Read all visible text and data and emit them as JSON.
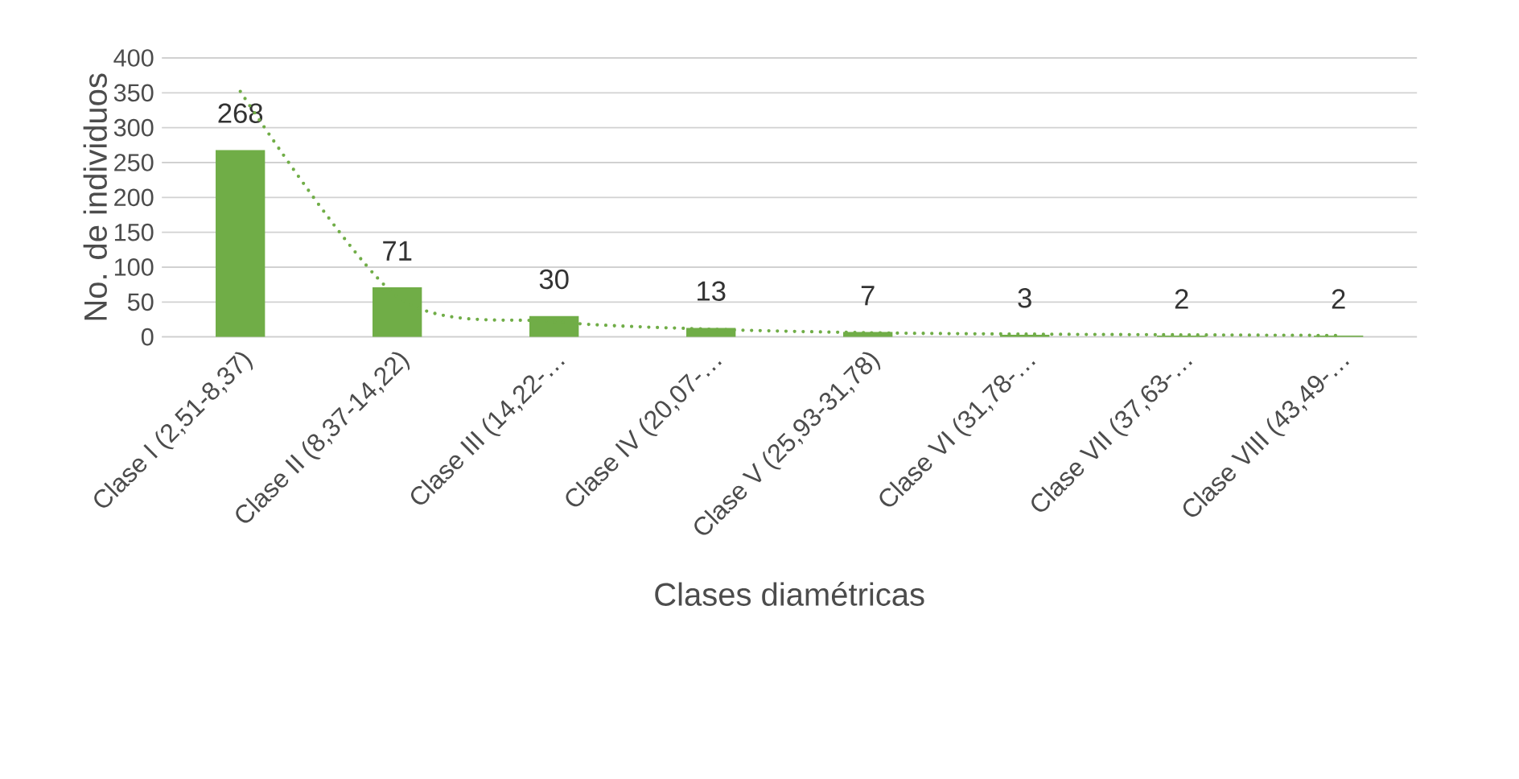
{
  "chart_data": {
    "type": "bar",
    "xlabel": "Clases diamétricas",
    "ylabel": "No. de individuos",
    "categories": [
      "Clase I (2,51-8,37)",
      "Clase II (8,37-14,22)",
      "Clase III (14,22-…",
      "Clase IV (20,07-…",
      "Clase V (25,93-31,78)",
      "Clase VI (31,78-…",
      "Clase VII (37,63-…",
      "Clase VIII (43,49-…"
    ],
    "series": [
      {
        "color": "#70ad47",
        "values": [
          268,
          71,
          30,
          13,
          7,
          3,
          2,
          2
        ],
        "value_labels": [
          "268",
          "71",
          "30",
          "13",
          "7",
          "3",
          "2",
          "2"
        ]
      },
      {
        "type": "line",
        "color": "#70ad47",
        "line_style": "dotted",
        "values": [
          352,
          58,
          22,
          11,
          6,
          4,
          3,
          2
        ]
      }
    ],
    "ylim": [
      0,
      400
    ],
    "yticks": [
      0,
      50,
      100,
      150,
      200,
      250,
      300,
      350,
      400
    ],
    "grid": "y",
    "marker": "none"
  }
}
